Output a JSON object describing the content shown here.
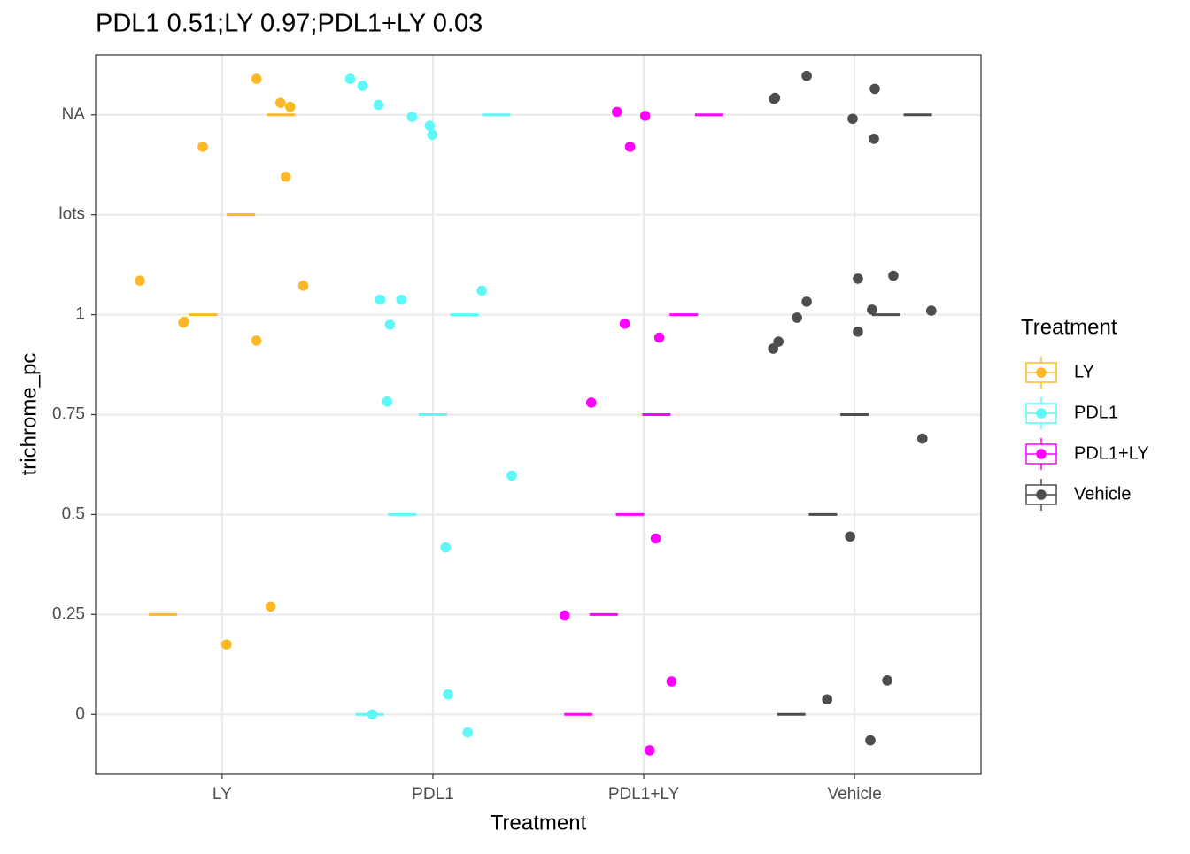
{
  "chart_data": {
    "type": "scatter",
    "title": "PDL1 0.51;LY 0.97;PDL1+LY 0.03",
    "x_label": "Treatment",
    "y_label": "trichrome_pc",
    "legend_title": "Treatment",
    "legend": "right",
    "grid": true,
    "xlim": [
      0.4,
      4.6
    ],
    "ylim": [
      0.4,
      7.6
    ],
    "xticks": [
      {
        "value": 1,
        "label": "LY"
      },
      {
        "value": 2,
        "label": "PDL1"
      },
      {
        "value": 3,
        "label": "PDL1+LY"
      },
      {
        "value": 4,
        "label": "Vehicle"
      }
    ],
    "yticks": [
      {
        "value": 1,
        "label": "0"
      },
      {
        "value": 2,
        "label": "0.25"
      },
      {
        "value": 3,
        "label": "0.5"
      },
      {
        "value": 4,
        "label": "0.75"
      },
      {
        "value": 5,
        "label": "1"
      },
      {
        "value": 6,
        "label": "lots"
      },
      {
        "value": 7,
        "label": "NA"
      }
    ],
    "series": [
      {
        "name": "LY",
        "color": "#FDB827",
        "x": [
          1.163,
          1.277,
          1.323,
          0.908,
          1.302,
          0.61,
          1.385,
          0.82,
          0.816,
          1.163,
          1.23,
          1.021
        ],
        "values": [
          7.36,
          7.12,
          7.08,
          6.68,
          6.38,
          5.34,
          5.29,
          4.93,
          4.92,
          4.74,
          2.08,
          1.7
        ],
        "box_x": [
          0.72,
          0.91,
          1.09,
          1.28
        ],
        "box_y": [
          2,
          5,
          6,
          7
        ]
      },
      {
        "name": "PDL1",
        "color": "#5EF8F8",
        "x": [
          1.607,
          1.666,
          1.742,
          1.901,
          1.985,
          1.997,
          2.232,
          1.75,
          1.85,
          1.796,
          1.783,
          2.374,
          2.06,
          1.712,
          2.072,
          2.165
        ],
        "values": [
          7.36,
          7.29,
          7.1,
          6.98,
          6.89,
          6.8,
          5.24,
          5.15,
          5.15,
          4.9,
          4.13,
          3.39,
          2.67,
          1.0,
          1.2,
          0.82
        ],
        "box_x": [
          1.7,
          1.855,
          2.0,
          2.15,
          2.3
        ],
        "box_y": [
          1,
          3,
          4,
          5,
          7
        ]
      },
      {
        "name": "PDL1+LY",
        "color": "#FF00FF",
        "x": [
          2.873,
          3.007,
          2.935,
          2.91,
          3.074,
          2.751,
          3.057,
          2.625,
          3.132,
          3.028
        ],
        "values": [
          7.03,
          6.99,
          6.68,
          4.91,
          4.77,
          4.12,
          2.76,
          1.99,
          1.33,
          0.64
        ],
        "box_x": [
          2.69,
          2.81,
          2.935,
          3.06,
          3.19,
          3.31
        ],
        "box_y": [
          1,
          2,
          3,
          4,
          5,
          7
        ]
      },
      {
        "name": "Vehicle",
        "color": "#4D4D4D",
        "x": [
          3.773,
          3.623,
          3.618,
          4.096,
          3.991,
          4.092,
          4.184,
          4.016,
          3.773,
          4.364,
          4.083,
          3.727,
          3.639,
          3.614,
          4.016,
          4.322,
          3.979,
          4.155,
          3.87,
          4.075
        ],
        "values": [
          7.39,
          7.17,
          7.16,
          7.26,
          6.96,
          6.76,
          5.39,
          5.36,
          5.13,
          5.04,
          5.05,
          4.97,
          4.73,
          4.66,
          4.83,
          3.76,
          2.78,
          1.34,
          1.15,
          0.74
        ],
        "box_x": [
          3.7,
          3.85,
          4.0,
          4.15,
          4.3
        ],
        "box_y": [
          1,
          3,
          4,
          5,
          7
        ]
      }
    ]
  }
}
